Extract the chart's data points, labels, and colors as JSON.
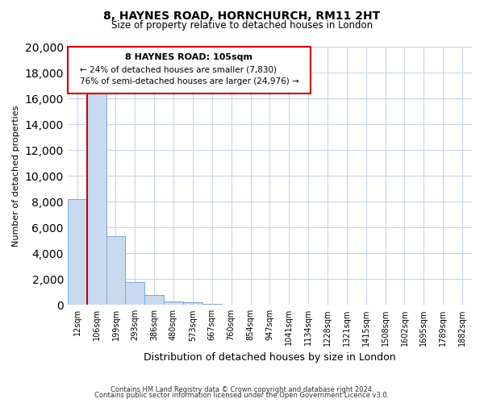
{
  "title": "8, HAYNES ROAD, HORNCHURCH, RM11 2HT",
  "subtitle": "Size of property relative to detached houses in London",
  "xlabel": "Distribution of detached houses by size in London",
  "ylabel": "Number of detached properties",
  "categories": [
    "12sqm",
    "106sqm",
    "199sqm",
    "293sqm",
    "386sqm",
    "480sqm",
    "573sqm",
    "667sqm",
    "760sqm",
    "854sqm",
    "947sqm",
    "1041sqm",
    "1134sqm",
    "1228sqm",
    "1321sqm",
    "1415sqm",
    "1508sqm",
    "1602sqm",
    "1695sqm",
    "1789sqm",
    "1882sqm"
  ],
  "bar_values": [
    8200,
    16500,
    5300,
    1750,
    750,
    250,
    200,
    100,
    0,
    0,
    0,
    0,
    0,
    0,
    0,
    0,
    0,
    0,
    0,
    0,
    0
  ],
  "bar_color": "#c9d9ef",
  "bar_edge_color": "#7da8cc",
  "ylim": [
    0,
    20000
  ],
  "yticks": [
    0,
    2000,
    4000,
    6000,
    8000,
    10000,
    12000,
    14000,
    16000,
    18000,
    20000
  ],
  "annotation_title": "8 HAYNES ROAD: 105sqm",
  "annotation_line1": "← 24% of detached houses are smaller (7,830)",
  "annotation_line2": "76% of semi-detached houses are larger (24,976) →",
  "annotation_border_color": "#cc0000",
  "footer_line1": "Contains HM Land Registry data © Crown copyright and database right 2024.",
  "footer_line2": "Contains public sector information licensed under the Open Government Licence v3.0.",
  "grid_color": "#c8d4e8",
  "background_color": "#ffffff",
  "red_line_color": "#cc0000"
}
